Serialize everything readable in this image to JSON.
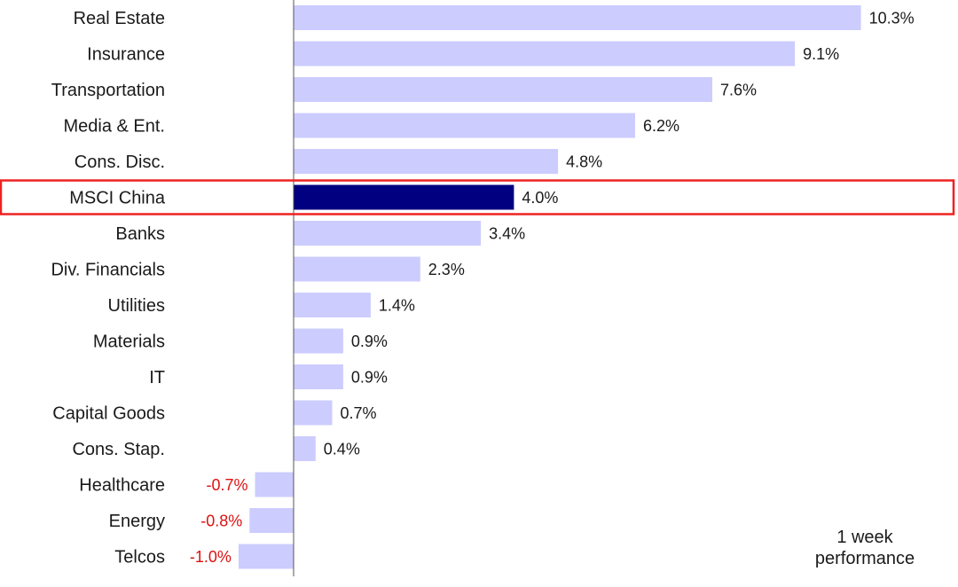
{
  "chart_data": {
    "type": "bar",
    "orientation": "horizontal",
    "categories": [
      "Real Estate",
      "Insurance",
      "Transportation",
      "Media & Ent.",
      "Cons. Disc.",
      "MSCI China",
      "Banks",
      "Div. Financials",
      "Utilities",
      "Materials",
      "IT",
      "Capital Goods",
      "Cons. Stap.",
      "Healthcare",
      "Energy",
      "Telcos"
    ],
    "values": [
      10.3,
      9.1,
      7.6,
      6.2,
      4.8,
      4.0,
      3.4,
      2.3,
      1.4,
      0.9,
      0.9,
      0.7,
      0.4,
      -0.7,
      -0.8,
      -1.0
    ],
    "value_labels": [
      "10.3%",
      "9.1%",
      "7.6%",
      "6.2%",
      "4.8%",
      "4.0%",
      "3.4%",
      "2.3%",
      "1.4%",
      "0.9%",
      "0.9%",
      "0.7%",
      "0.4%",
      "-0.7%",
      "-0.8%",
      "-1.0%"
    ],
    "highlight": "MSCI China",
    "xlim": [
      -1.0,
      10.3
    ],
    "grid": false,
    "colors": {
      "bar": "#ccccff",
      "highlight_bar": "#000080",
      "highlight_box": "#ee2222",
      "negative_label": "#dd1111",
      "positive_label": "#1a1a1a"
    }
  },
  "annotation": {
    "line1": "1 week",
    "line2": "performance"
  }
}
